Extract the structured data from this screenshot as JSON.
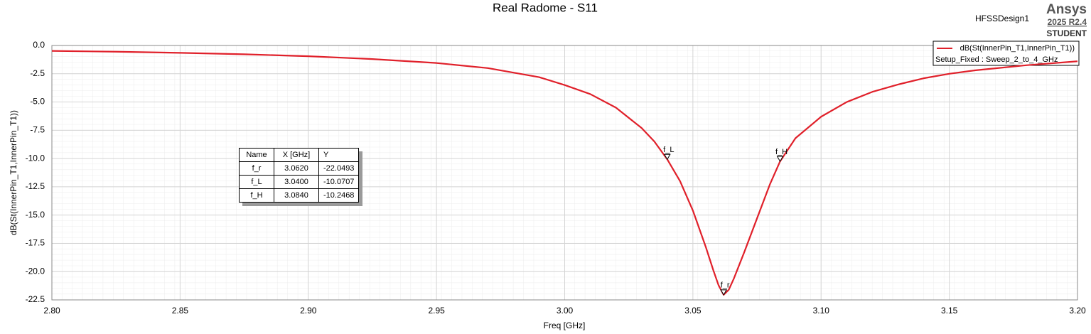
{
  "chart_data": {
    "type": "line",
    "title": "Real Radome - S11",
    "design_name": "HFSSDesign1",
    "brand": "Ansys",
    "version": "2025 R2.4",
    "edition": "STUDENT",
    "x_label": "Freq [GHz]",
    "y_label": "dB(St(InnerPin_T1,InnerPin_T1))",
    "legend_subtitle": "Setup_Fixed : Sweep_2_to_4_GHz",
    "grid": true,
    "legend_position": "upper right",
    "x": [
      2.8,
      2.825,
      2.85,
      2.875,
      2.9,
      2.925,
      2.95,
      2.97,
      2.99,
      3.0,
      3.01,
      3.02,
      3.03,
      3.035,
      3.04,
      3.045,
      3.05,
      3.055,
      3.058,
      3.06,
      3.062,
      3.064,
      3.066,
      3.07,
      3.075,
      3.08,
      3.084,
      3.09,
      3.1,
      3.11,
      3.12,
      3.13,
      3.14,
      3.15,
      3.16,
      3.18,
      3.2
    ],
    "series": [
      {
        "name": "dB(St(InnerPin_T1,InnerPin_T1))",
        "color": "#e0202a",
        "values": [
          -0.48,
          -0.55,
          -0.65,
          -0.78,
          -0.95,
          -1.2,
          -1.55,
          -2.0,
          -2.8,
          -3.5,
          -4.3,
          -5.5,
          -7.3,
          -8.5,
          -10.07,
          -12.0,
          -14.6,
          -17.8,
          -19.9,
          -21.2,
          -22.05,
          -21.6,
          -20.6,
          -18.3,
          -15.3,
          -12.3,
          -10.25,
          -8.2,
          -6.3,
          -5.0,
          -4.1,
          -3.45,
          -2.9,
          -2.5,
          -2.2,
          -1.75,
          -1.4
        ]
      }
    ],
    "markers": [
      {
        "name": "f_r",
        "x": 3.062,
        "y": -22.0493
      },
      {
        "name": "f_L",
        "x": 3.04,
        "y": -10.0707
      },
      {
        "name": "f_H",
        "x": 3.084,
        "y": -10.2468
      }
    ],
    "xlim": [
      2.8,
      3.2
    ],
    "xticks": [
      {
        "value": 2.8,
        "label": "2.80"
      },
      2.85,
      {
        "value": 2.9,
        "label": "2.90"
      },
      2.95,
      {
        "value": 3.0,
        "label": "3.00"
      },
      3.05,
      {
        "value": 3.1,
        "label": "3.10"
      },
      3.15,
      {
        "value": 3.2,
        "label": "3.20"
      }
    ],
    "ylim": [
      -22.5,
      0
    ],
    "yticks": [
      {
        "value": 0,
        "label": "0.0"
      },
      -2.5,
      {
        "value": -5,
        "label": "-5.0"
      },
      -7.5,
      {
        "value": -10,
        "label": "-10.0"
      },
      -12.5,
      {
        "value": -15,
        "label": "-15.0"
      },
      -17.5,
      {
        "value": -20,
        "label": "-20.0"
      },
      -22.5
    ]
  },
  "marker_table": {
    "columns": [
      "Name",
      "X [GHz]",
      "Y"
    ],
    "rows": [
      [
        "f_r",
        "3.0620",
        "-22.0493"
      ],
      [
        "f_L",
        "3.0400",
        "-10.0707"
      ],
      [
        "f_H",
        "3.0840",
        "-10.2468"
      ]
    ]
  }
}
